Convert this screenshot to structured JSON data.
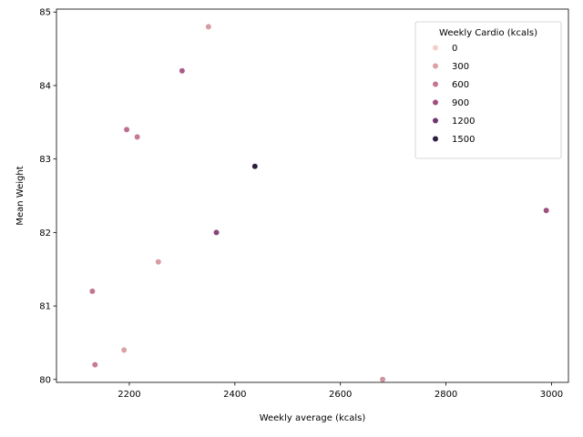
{
  "chart_data": {
    "type": "scatter",
    "xlabel": "Weekly average (kcals)",
    "ylabel": "Mean Weight",
    "xlim": [
      2062,
      3032
    ],
    "ylim": [
      79.96,
      85.04
    ],
    "xticks": [
      2200,
      2400,
      2600,
      2800,
      3000
    ],
    "yticks": [
      80,
      81,
      82,
      83,
      84,
      85
    ],
    "grid": false,
    "legend": {
      "title": "Weekly Cardio (kcals)",
      "placement": "top-right",
      "entries": [
        {
          "label": "0",
          "color": "#f1d0c9"
        },
        {
          "label": "300",
          "color": "#dba1a4"
        },
        {
          "label": "600",
          "color": "#c3758f"
        },
        {
          "label": "900",
          "color": "#9e4f80"
        },
        {
          "label": "1200",
          "color": "#6d3570"
        },
        {
          "label": "1500",
          "color": "#2d1e3e"
        }
      ]
    },
    "points": [
      {
        "x": 2350,
        "y": 84.8,
        "cardio": 350,
        "color": "#d69ba3"
      },
      {
        "x": 2300,
        "y": 84.2,
        "cardio": 800,
        "color": "#aa5a88"
      },
      {
        "x": 2195,
        "y": 83.4,
        "cardio": 650,
        "color": "#bc6e90"
      },
      {
        "x": 2215,
        "y": 83.3,
        "cardio": 550,
        "color": "#c67b93"
      },
      {
        "x": 2438,
        "y": 82.9,
        "cardio": 1500,
        "color": "#2d1e3e"
      },
      {
        "x": 2990,
        "y": 82.3,
        "cardio": 900,
        "color": "#9e4f80"
      },
      {
        "x": 2365,
        "y": 82.0,
        "cardio": 1000,
        "color": "#8a4479"
      },
      {
        "x": 2255,
        "y": 81.6,
        "cardio": 350,
        "color": "#d69ba3"
      },
      {
        "x": 2130,
        "y": 81.2,
        "cardio": 600,
        "color": "#c3758f"
      },
      {
        "x": 2190,
        "y": 80.4,
        "cardio": 300,
        "color": "#dba1a4"
      },
      {
        "x": 2135,
        "y": 80.2,
        "cardio": 550,
        "color": "#c67b93"
      },
      {
        "x": 2680,
        "y": 80.0,
        "cardio": 400,
        "color": "#d093a0"
      }
    ]
  }
}
